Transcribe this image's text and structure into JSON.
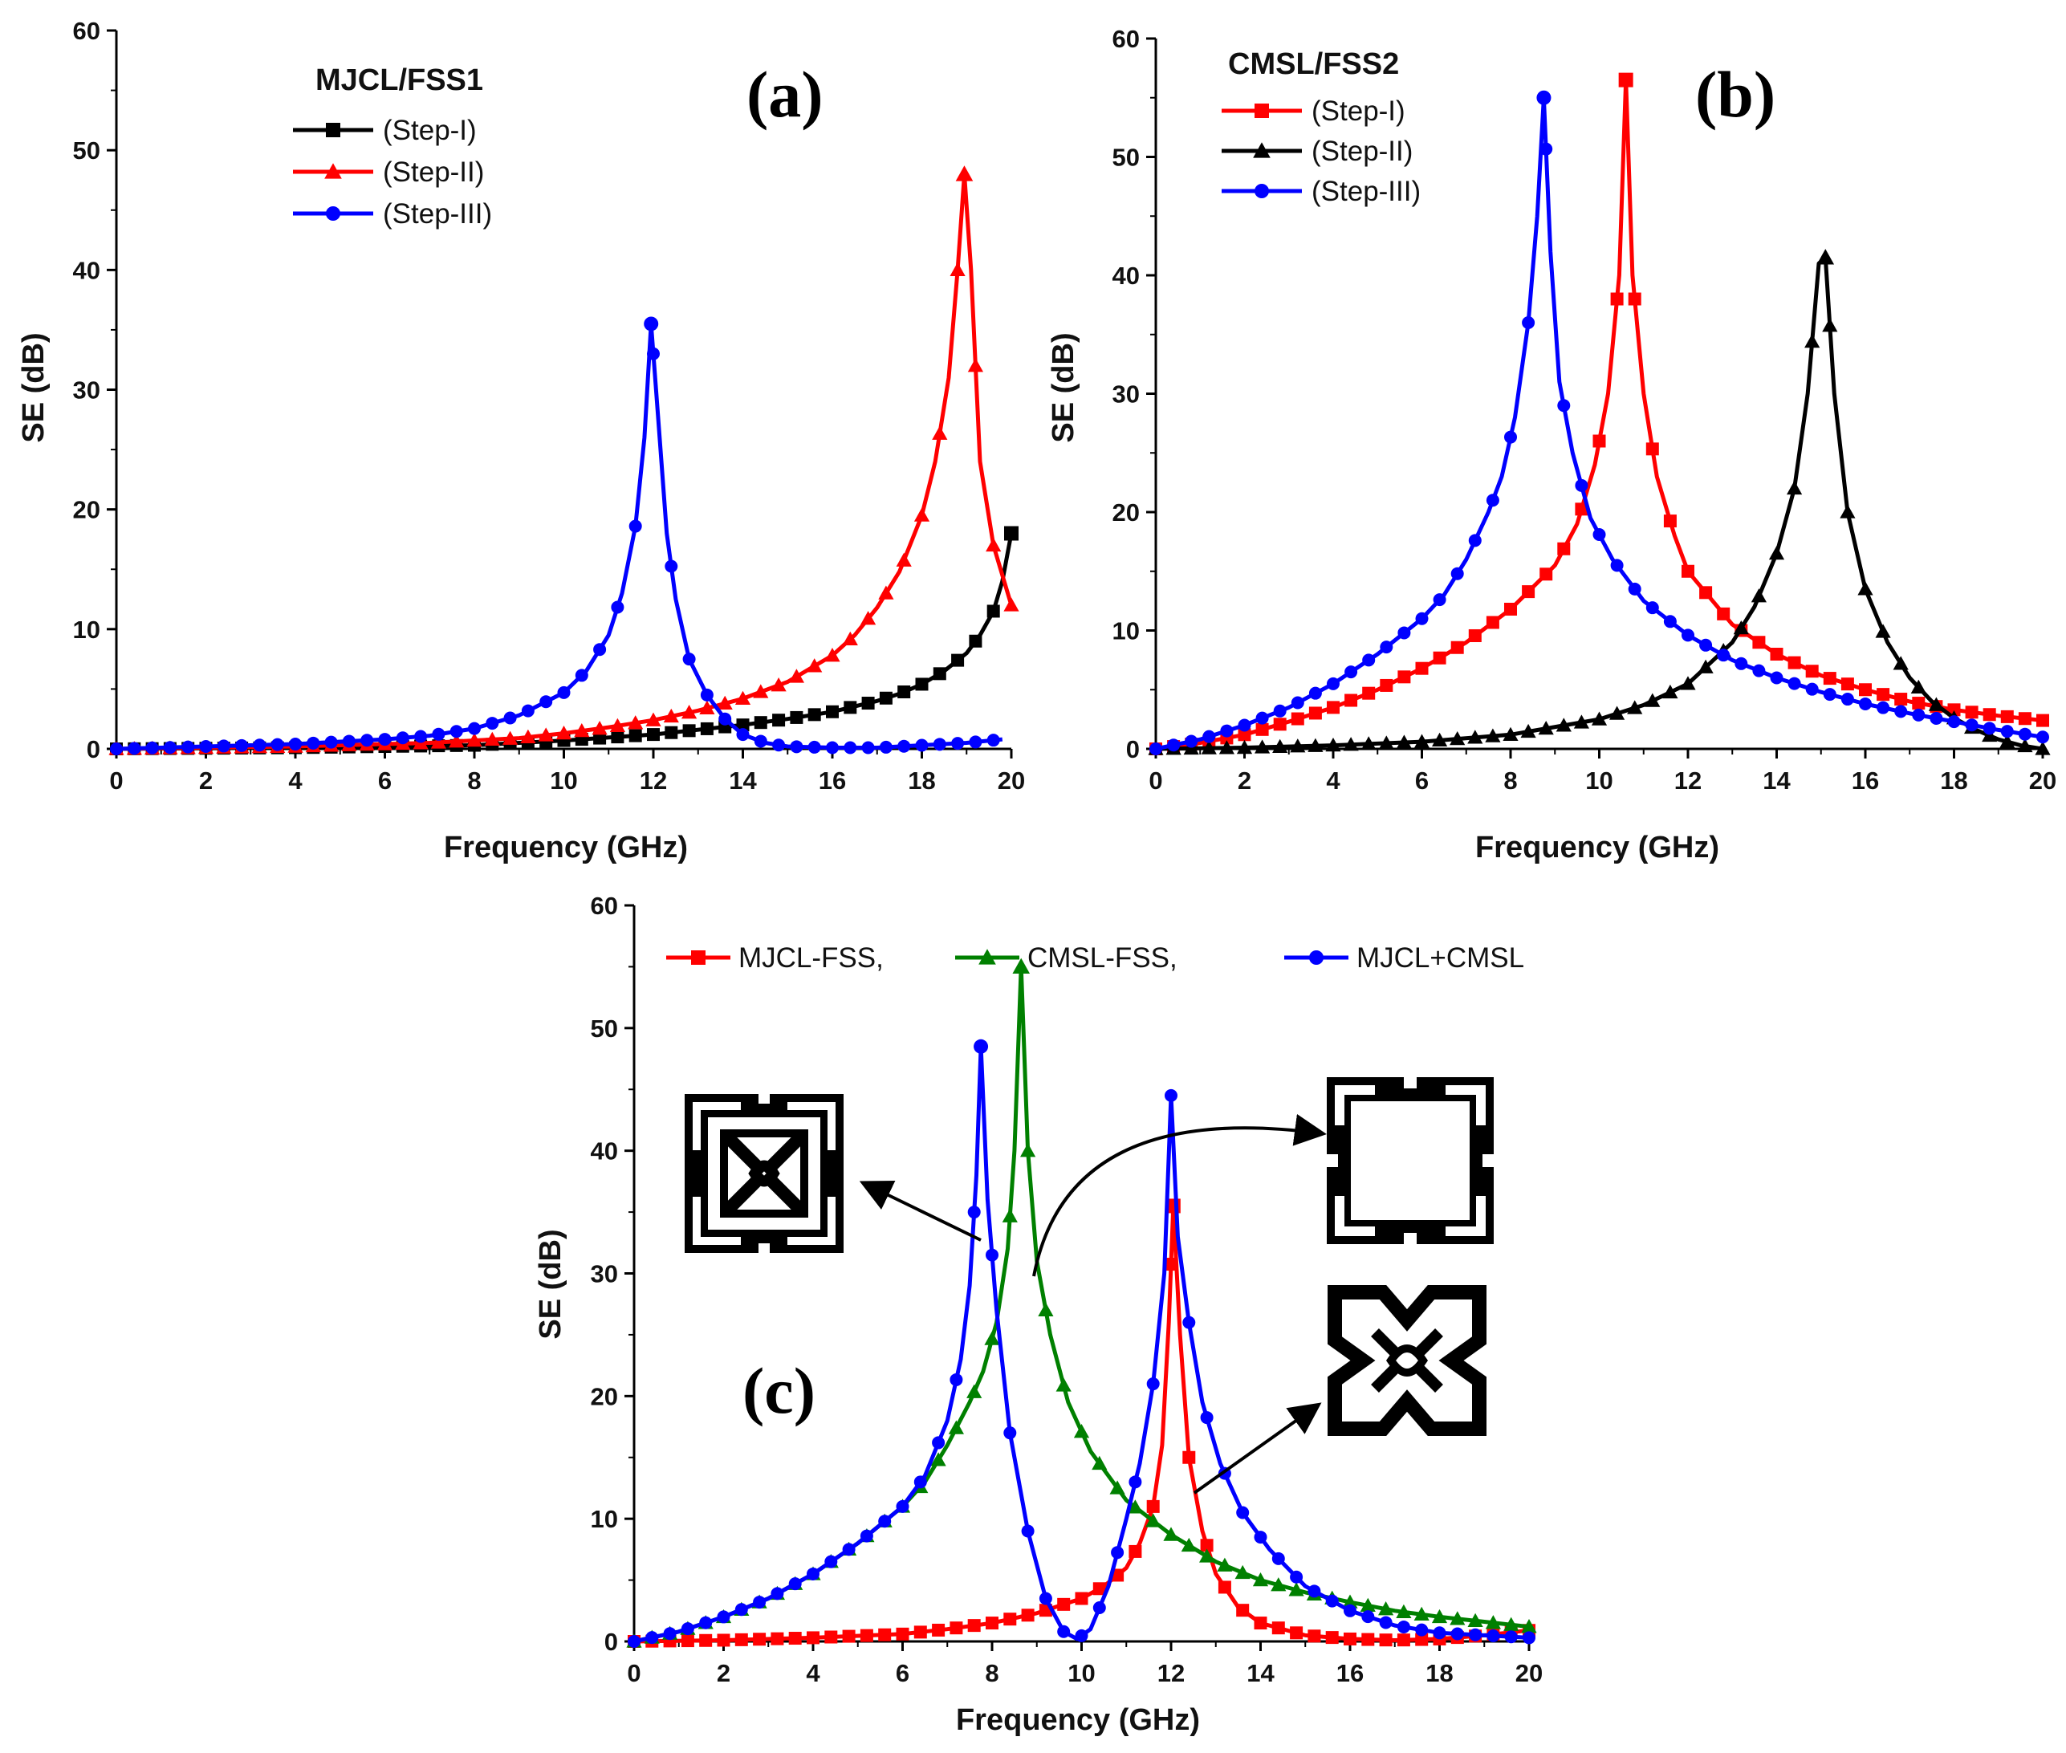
{
  "chart_data": [
    {
      "id": "a",
      "type": "line",
      "panel_label": "(a)",
      "legend_title": "MJCL/FSS1",
      "xlabel": "Frequency (GHz)",
      "ylabel": "SE (dB)",
      "xlim": [
        0,
        20
      ],
      "ylim": [
        0,
        60
      ],
      "xticks": [
        0,
        2,
        4,
        6,
        8,
        10,
        12,
        14,
        16,
        18,
        20
      ],
      "yticks": [
        0,
        10,
        20,
        30,
        40,
        50,
        60
      ],
      "legend_position": "top-left",
      "series": [
        {
          "name": "(Step-I)",
          "color": "#000000",
          "marker": "square",
          "x": [
            0,
            4,
            8,
            10,
            12,
            14,
            15,
            16,
            17,
            17.5,
            18,
            18.5,
            19,
            19.3,
            19.6,
            19.8,
            20
          ],
          "y": [
            0,
            0.1,
            0.3,
            0.7,
            1.2,
            2.0,
            2.5,
            3.1,
            4.0,
            4.6,
            5.4,
            6.5,
            8.0,
            9.5,
            11.5,
            14,
            18
          ]
        },
        {
          "name": "(Step-II)",
          "color": "#ff0000",
          "marker": "triangle",
          "x": [
            0,
            4,
            7,
            9,
            10,
            11,
            12,
            13,
            14,
            15,
            16,
            16.5,
            17,
            17.5,
            18,
            18.3,
            18.6,
            18.8,
            18.95,
            19.1,
            19.3,
            19.6,
            20
          ],
          "y": [
            0,
            0.2,
            0.5,
            0.9,
            1.3,
            1.8,
            2.4,
            3.2,
            4.2,
            5.6,
            7.8,
            9.5,
            11.8,
            14.8,
            19.5,
            24,
            31,
            40,
            48,
            40,
            24,
            17,
            12
          ]
        },
        {
          "name": "(Step-III)",
          "color": "#0000ff",
          "marker": "circle",
          "x": [
            0,
            2,
            4,
            6,
            7,
            8,
            9,
            10,
            10.5,
            11,
            11.3,
            11.6,
            11.8,
            11.95,
            12.1,
            12.3,
            12.5,
            12.8,
            13.2,
            13.6,
            14,
            14.5,
            15,
            16,
            17,
            18,
            19,
            19.8
          ],
          "y": [
            0,
            0.2,
            0.4,
            0.8,
            1.1,
            1.7,
            2.8,
            4.7,
            6.5,
            9.5,
            13,
            18.6,
            26,
            35.5,
            28,
            18,
            12.5,
            7.5,
            4.5,
            2.5,
            1.2,
            0.5,
            0.2,
            0.1,
            0.1,
            0.3,
            0.5,
            0.8
          ]
        }
      ]
    },
    {
      "id": "b",
      "type": "line",
      "panel_label": "(b)",
      "legend_title": "CMSL/FSS2",
      "xlabel": "Frequency (GHz)",
      "ylabel": "SE (dB)",
      "xlim": [
        0,
        20
      ],
      "ylim": [
        0,
        60
      ],
      "xticks": [
        0,
        2,
        4,
        6,
        8,
        10,
        12,
        14,
        16,
        18,
        20
      ],
      "yticks": [
        0,
        10,
        20,
        30,
        40,
        50,
        60
      ],
      "legend_position": "top-left",
      "series": [
        {
          "name": "(Step-I)",
          "color": "#ff0000",
          "marker": "square",
          "x": [
            0,
            1,
            2,
            3,
            4,
            5,
            6,
            7,
            8,
            9,
            9.5,
            9.9,
            10.2,
            10.45,
            10.6,
            10.75,
            11,
            11.3,
            11.7,
            12,
            13,
            14,
            15,
            16,
            17,
            18,
            19,
            20
          ],
          "y": [
            0,
            0.5,
            1.2,
            2.3,
            3.5,
            5.0,
            6.8,
            9.0,
            11.8,
            15.5,
            19,
            24,
            30,
            40,
            56.5,
            40,
            30,
            23,
            18,
            15,
            10.5,
            8.0,
            6.2,
            5.0,
            4.0,
            3.3,
            2.8,
            2.4
          ]
        },
        {
          "name": "(Step-II)",
          "color": "#000000",
          "marker": "triangle",
          "x": [
            0,
            2,
            4,
            6,
            8,
            10,
            11,
            12,
            13,
            13.5,
            14,
            14.4,
            14.7,
            14.95,
            15.1,
            15.3,
            15.6,
            16,
            16.5,
            17,
            17.5,
            18,
            18.5,
            19,
            19.5,
            20
          ],
          "y": [
            0,
            0.1,
            0.3,
            0.6,
            1.2,
            2.5,
            3.7,
            5.5,
            9.0,
            12,
            16.5,
            22,
            30,
            41,
            41.5,
            30,
            20,
            13.5,
            9,
            6,
            4,
            2.6,
            1.6,
            0.8,
            0.3,
            0
          ]
        },
        {
          "name": "(Step-III)",
          "color": "#0000ff",
          "marker": "circle",
          "x": [
            0,
            1,
            2,
            3,
            4,
            5,
            6,
            6.5,
            7,
            7.5,
            7.8,
            8.1,
            8.4,
            8.6,
            8.75,
            8.9,
            9.1,
            9.4,
            9.8,
            10.3,
            11,
            12,
            13,
            14,
            15,
            16,
            17,
            18,
            19,
            20
          ],
          "y": [
            0,
            0.8,
            2.0,
            3.5,
            5.5,
            8.0,
            11,
            13,
            16,
            20,
            23,
            28,
            36,
            45,
            55,
            42,
            31,
            25,
            19.5,
            16,
            12.5,
            9.6,
            7.5,
            6.0,
            4.8,
            3.8,
            3.0,
            2.3,
            1.6,
            1.0
          ]
        }
      ]
    },
    {
      "id": "c",
      "type": "line",
      "panel_label": "(c)",
      "legend_title": "",
      "xlabel": "Frequency (GHz)",
      "ylabel": "SE (dB)",
      "xlim": [
        0,
        20
      ],
      "ylim": [
        0,
        60
      ],
      "xticks": [
        0,
        2,
        4,
        6,
        8,
        10,
        12,
        14,
        16,
        18,
        20
      ],
      "yticks": [
        0,
        10,
        20,
        30,
        40,
        50,
        60
      ],
      "legend_position": "top",
      "annotations": [
        "MJCL+CMSL unit cell",
        "CMSL unit cell",
        "MJCL unit cell"
      ],
      "series": [
        {
          "name": "MJCL-FSS,",
          "color": "#ff0000",
          "marker": "square",
          "x": [
            0,
            2,
            4,
            6,
            7,
            8,
            9,
            10,
            10.5,
            11,
            11.3,
            11.6,
            11.8,
            11.95,
            12.05,
            12.2,
            12.4,
            12.7,
            13,
            13.5,
            14,
            15,
            16,
            17,
            18,
            19,
            20
          ],
          "y": [
            0,
            0.1,
            0.3,
            0.6,
            1.0,
            1.5,
            2.3,
            3.5,
            4.5,
            6.0,
            8.0,
            11,
            16,
            26,
            35.5,
            25,
            15,
            9,
            5.5,
            2.8,
            1.5,
            0.5,
            0.2,
            0.1,
            0.2,
            0.5,
            0.9
          ]
        },
        {
          "name": "CMSL-FSS,",
          "color": "#008000",
          "marker": "triangle",
          "x": [
            0,
            1,
            2,
            3,
            4,
            5,
            6,
            6.5,
            7,
            7.5,
            7.8,
            8.1,
            8.35,
            8.5,
            8.65,
            8.8,
            9.0,
            9.3,
            9.7,
            10.2,
            11,
            12,
            13,
            14,
            15,
            16,
            17,
            18,
            19,
            20
          ],
          "y": [
            0,
            0.8,
            2.0,
            3.5,
            5.5,
            8.0,
            11,
            13,
            16,
            19.5,
            22,
            26,
            32,
            40,
            55,
            40,
            31,
            25,
            19.5,
            15.5,
            11.5,
            8.7,
            6.5,
            5.0,
            4.0,
            3.2,
            2.5,
            2.0,
            1.6,
            1.2
          ]
        },
        {
          "name": "MJCL+CMSL",
          "color": "#0000ff",
          "marker": "circle",
          "x": [
            0,
            1,
            2,
            3,
            4,
            5,
            6,
            6.5,
            7,
            7.3,
            7.5,
            7.65,
            7.75,
            7.9,
            8.1,
            8.4,
            8.8,
            9.2,
            9.6,
            9.9,
            10.2,
            10.6,
            11,
            11.3,
            11.6,
            11.85,
            12.0,
            12.15,
            12.4,
            12.7,
            13.1,
            13.6,
            14.2,
            15,
            16,
            17,
            18,
            19,
            20
          ],
          "y": [
            0,
            0.8,
            2.0,
            3.5,
            5.5,
            8.0,
            11,
            13.5,
            18,
            23,
            29,
            38,
            48.5,
            36,
            27,
            17,
            9,
            3.5,
            0.8,
            0.2,
            1.0,
            4.5,
            10,
            14.5,
            21,
            30,
            44.5,
            33,
            26,
            19.5,
            14.5,
            10.5,
            7.5,
            4.5,
            2.5,
            1.3,
            0.7,
            0.5,
            0.3
          ]
        }
      ]
    }
  ]
}
